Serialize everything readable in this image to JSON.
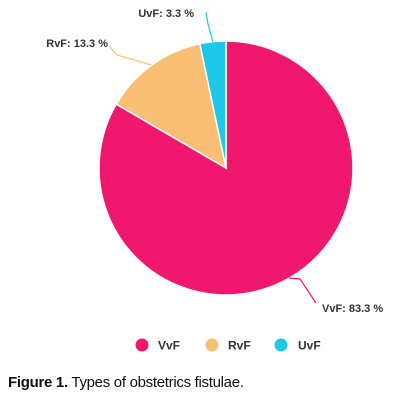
{
  "chart_data": {
    "type": "pie",
    "slices": [
      {
        "name": "VvF",
        "value": 83.3,
        "label": "VvF: 83.3 %",
        "color": "#F0186E"
      },
      {
        "name": "RvF",
        "value": 13.3,
        "label": "RvF: 13.3 %",
        "color": "#FABE74"
      },
      {
        "name": "UvF",
        "value": 3.3,
        "label": "UvF: 3.3 %",
        "color": "#1EC8E8"
      }
    ],
    "legend": [
      "VvF",
      "RvF",
      "UvF"
    ],
    "legend_position": "bottom"
  },
  "caption": {
    "prefix": "Figure 1.",
    "text": " Types of obstetrics fistulae."
  }
}
